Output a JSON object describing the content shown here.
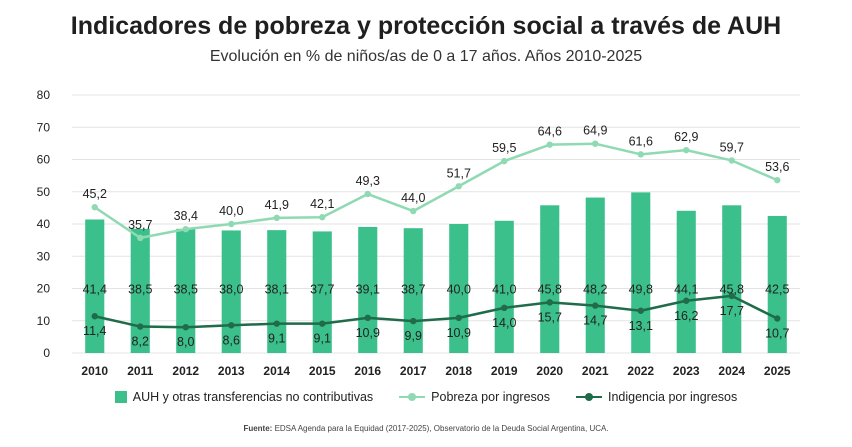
{
  "title": "Indicadores de pobreza y protección social a través de AUH",
  "subtitle": "Evolución en % de niños/as de 0 a 17 años. Años 2010-2025",
  "source_label": "Fuente:",
  "source_text": "EDSA Agenda para la Equidad (2017-2025), Observatorio de la Deuda Social Argentina, UCA.",
  "chart_data": {
    "type": "bar",
    "categories": [
      "2010",
      "2011",
      "2012",
      "2013",
      "2014",
      "2015",
      "2016",
      "2017",
      "2018",
      "2019",
      "2020",
      "2021",
      "2022",
      "2023",
      "2024",
      "2025"
    ],
    "ylim": [
      0,
      80
    ],
    "yticks": [
      "0",
      "10",
      "20",
      "30",
      "40",
      "50",
      "60",
      "70",
      "80"
    ],
    "grid": true,
    "legend_position": "bottom",
    "series": [
      {
        "name": "AUH y otras transferencias no contributivas",
        "kind": "bar",
        "color": "#3cc08b",
        "values": [
          41.4,
          38.5,
          38.5,
          38.0,
          38.1,
          37.7,
          39.1,
          38.7,
          40.0,
          41.0,
          45.8,
          48.2,
          49.8,
          44.1,
          45.8,
          42.5
        ],
        "labels": [
          "41,4",
          "38,5",
          "38,5",
          "38,0",
          "38,1",
          "37,7",
          "39,1",
          "38,7",
          "40,0",
          "41,0",
          "45,8",
          "48,2",
          "49,8",
          "44,1",
          "45,8",
          "42,5"
        ]
      },
      {
        "name": "Pobreza por ingresos",
        "kind": "line",
        "color": "#8fd9b3",
        "values": [
          45.2,
          35.7,
          38.4,
          40.0,
          41.9,
          42.1,
          49.3,
          44.0,
          51.7,
          59.5,
          64.6,
          64.9,
          61.6,
          62.9,
          59.7,
          53.6
        ],
        "labels": [
          "45,2",
          "35,7",
          "38,4",
          "40,0",
          "41,9",
          "42,1",
          "49,3",
          "44,0",
          "51,7",
          "59,5",
          "64,6",
          "64,9",
          "61,6",
          "62,9",
          "59,7",
          "53,6"
        ]
      },
      {
        "name": "Indigencia por ingresos",
        "kind": "line",
        "color": "#1f6b4a",
        "values": [
          11.4,
          8.2,
          8.0,
          8.6,
          9.1,
          9.1,
          10.9,
          9.9,
          10.9,
          14.0,
          15.7,
          14.7,
          13.1,
          16.2,
          17.7,
          10.7
        ],
        "labels": [
          "11,4",
          "8,2",
          "8,0",
          "8,6",
          "9,1",
          "9,1",
          "10,9",
          "9,9",
          "10,9",
          "14,0",
          "15,7",
          "14,7",
          "13,1",
          "16,2",
          "17,7",
          "10,7"
        ]
      }
    ]
  }
}
